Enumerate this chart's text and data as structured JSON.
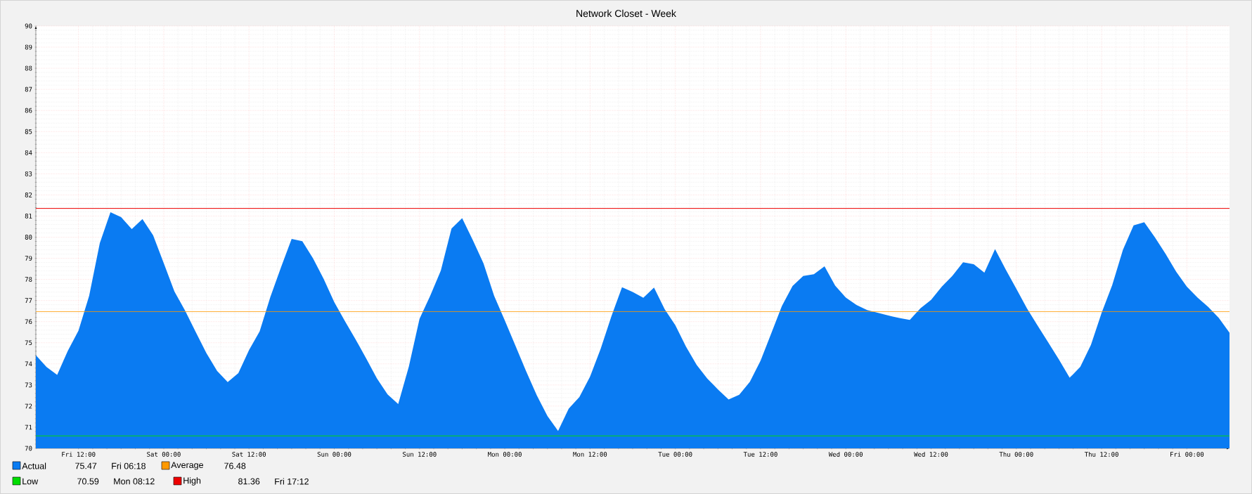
{
  "chart_data": {
    "type": "area",
    "title": "Network Closet - Week",
    "categories": [
      null,
      null,
      null,
      null,
      "Fri 12:00",
      null,
      null,
      null,
      null,
      null,
      null,
      null,
      "Sat 00:00",
      null,
      null,
      null,
      null,
      null,
      null,
      null,
      "Sat 12:00",
      null,
      null,
      null,
      null,
      null,
      null,
      null,
      "Sun 00:00",
      null,
      null,
      null,
      null,
      null,
      null,
      null,
      "Sun 12:00",
      null,
      null,
      null,
      null,
      null,
      null,
      null,
      "Mon 00:00",
      null,
      null,
      null,
      null,
      null,
      null,
      null,
      "Mon 12:00",
      null,
      null,
      null,
      null,
      null,
      null,
      null,
      "Tue 00:00",
      null,
      null,
      null,
      null,
      null,
      null,
      null,
      "Tue 12:00",
      null,
      null,
      null,
      null,
      null,
      null,
      null,
      "Wed 00:00",
      null,
      null,
      null,
      null,
      null,
      null,
      null,
      "Wed 12:00",
      null,
      null,
      null,
      null,
      null,
      null,
      null,
      "Thu 00:00",
      null,
      null,
      null,
      null,
      null,
      null,
      null,
      "Thu 12:00",
      null,
      null,
      null,
      null,
      null,
      null,
      null,
      "Fri 00:00",
      null,
      null,
      null,
      null
    ],
    "series": [
      {
        "name": "Actual",
        "color": "#0a7bf2",
        "values": [
          74.41,
          73.85,
          73.48,
          74.62,
          75.57,
          77.22,
          79.72,
          81.18,
          80.95,
          80.38,
          80.86,
          80.09,
          78.77,
          77.43,
          76.52,
          75.51,
          74.51,
          73.67,
          73.14,
          73.56,
          74.65,
          75.54,
          77.16,
          78.57,
          79.92,
          79.81,
          79.0,
          78.03,
          76.92,
          76.02,
          75.16,
          74.25,
          73.31,
          72.55,
          72.1,
          73.88,
          76.13,
          77.22,
          78.42,
          80.41,
          80.9,
          79.86,
          78.76,
          77.22,
          76.06,
          74.86,
          73.65,
          72.51,
          71.53,
          70.82,
          71.88,
          72.43,
          73.39,
          74.72,
          76.25,
          77.63,
          77.4,
          77.13,
          77.61,
          76.59,
          75.83,
          74.82,
          73.95,
          73.3,
          72.79,
          72.31,
          72.54,
          73.15,
          74.15,
          75.44,
          76.74,
          77.69,
          78.16,
          78.24,
          78.62,
          77.7,
          77.14,
          76.79,
          76.55,
          76.42,
          76.29,
          76.17,
          76.08,
          76.63,
          77.03,
          77.65,
          78.17,
          78.81,
          78.72,
          78.32,
          79.43,
          78.47,
          77.55,
          76.62,
          75.81,
          75.01,
          74.2,
          73.34,
          73.86,
          74.9,
          76.41,
          77.74,
          79.4,
          80.56,
          80.71,
          79.99,
          79.21,
          78.36,
          77.65,
          77.14,
          76.7,
          76.17,
          75.47
        ]
      }
    ],
    "ylim": [
      70,
      90
    ],
    "yticks": [
      70,
      71,
      72,
      73,
      74,
      75,
      76,
      77,
      78,
      79,
      80,
      81,
      82,
      83,
      84,
      85,
      86,
      87,
      88,
      89,
      90
    ],
    "ref_lines": [
      {
        "axis": "y",
        "value": 76.48,
        "label": "Average",
        "color": "#ff9900"
      },
      {
        "axis": "y",
        "value": 70.59,
        "label": "Low",
        "color": "#00dd00"
      },
      {
        "axis": "y",
        "value": 81.36,
        "label": "High",
        "color": "#ee0000"
      }
    ],
    "annotations": [
      "75.47",
      "Fri 06:18",
      "76.48",
      "70.59",
      "Mon 08:12",
      "81.36",
      "Fri 17:12"
    ],
    "grid": true,
    "legend": "bottom left"
  }
}
